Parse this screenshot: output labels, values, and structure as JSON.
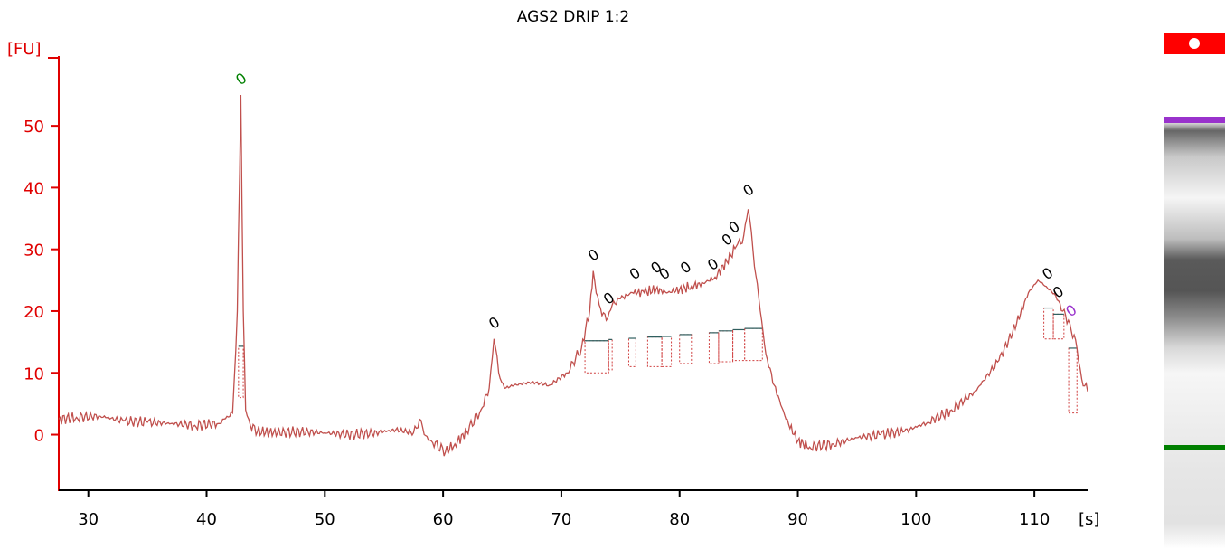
{
  "chart_data": {
    "type": "line",
    "title": "AGS2 DRIP 1:2",
    "ylabel": "[FU]",
    "xlabel": "[s]",
    "xlim": [
      27.5,
      114.5
    ],
    "ylim": [
      -9,
      61
    ],
    "x_ticks": [
      "30",
      "40",
      "50",
      "60",
      "70",
      "80",
      "90",
      "100",
      "110"
    ],
    "y_ticks": [
      "0",
      "10",
      "20",
      "30",
      "40",
      "50"
    ],
    "grid": false,
    "series": [
      {
        "color": "#c0504d",
        "x": [
          27.5,
          29,
          31,
          33,
          35,
          37,
          39,
          41,
          42.2,
          42.6,
          42.9,
          43.1,
          43.3,
          43.7,
          44.3,
          46,
          48,
          50,
          52,
          54,
          56,
          57.5,
          58.0,
          58.4,
          59,
          60.2,
          61,
          62,
          63.2,
          63.9,
          64.3,
          64.7,
          65.2,
          66,
          67.5,
          69,
          70.5,
          71.7,
          72.4,
          72.7,
          73.2,
          73.8,
          74.3,
          75,
          76,
          77,
          78,
          79,
          80,
          81,
          82,
          83,
          84,
          84.8,
          85.3,
          85.8,
          86.2,
          86.7,
          87.3,
          88,
          89,
          90,
          91,
          93,
          95,
          97,
          99,
          101,
          103,
          105,
          107,
          108.5,
          109.5,
          110.3,
          111,
          111.8,
          112.4,
          113.0,
          113.6,
          114.0,
          114.5
        ],
        "y": [
          2.5,
          2.8,
          3.0,
          2.2,
          2.0,
          1.8,
          1.5,
          1.8,
          3.5,
          20.0,
          55.0,
          20.0,
          4.0,
          1.5,
          0.5,
          0.3,
          0.5,
          0.3,
          0.0,
          0.2,
          0.8,
          0.3,
          2.5,
          0.0,
          -1.0,
          -2.8,
          -1.5,
          0.5,
          4.0,
          7.5,
          15.5,
          10.0,
          7.5,
          8.0,
          8.5,
          8.0,
          10.0,
          14.0,
          20.0,
          26.5,
          21.0,
          18.5,
          21.0,
          22.0,
          23.0,
          23.0,
          23.5,
          23.0,
          23.5,
          24.0,
          24.5,
          25.5,
          28.0,
          30.5,
          31.0,
          36.5,
          30.0,
          22.0,
          13.0,
          8.0,
          2.5,
          -1.0,
          -2.0,
          -1.5,
          -0.5,
          0.0,
          0.5,
          2.0,
          4.0,
          7.0,
          12.0,
          18.0,
          23.0,
          25.0,
          24.0,
          22.5,
          20.0,
          18.0,
          14.0,
          9.0,
          7.0
        ]
      }
    ],
    "peaks": [
      {
        "x": 42.9,
        "y": 55.0,
        "label": "0",
        "color": "#008000"
      },
      {
        "x": 64.3,
        "y": 15.5,
        "label": "0",
        "color": "#000000"
      },
      {
        "x": 72.7,
        "y": 26.5,
        "label": "0",
        "color": "#000000"
      },
      {
        "x": 74.0,
        "y": 19.5,
        "label": "0",
        "color": "#000000"
      },
      {
        "x": 76.2,
        "y": 23.5,
        "label": "0",
        "color": "#000000"
      },
      {
        "x": 78.0,
        "y": 24.5,
        "label": "0",
        "color": "#000000"
      },
      {
        "x": 78.7,
        "y": 23.5,
        "label": "0",
        "color": "#000000"
      },
      {
        "x": 80.5,
        "y": 24.5,
        "label": "0",
        "color": "#000000"
      },
      {
        "x": 82.8,
        "y": 25.0,
        "label": "0",
        "color": "#000000"
      },
      {
        "x": 84.0,
        "y": 29.0,
        "label": "0",
        "color": "#000000"
      },
      {
        "x": 84.6,
        "y": 31.0,
        "label": "0",
        "color": "#000000"
      },
      {
        "x": 85.8,
        "y": 37.0,
        "label": "0",
        "color": "#000000"
      },
      {
        "x": 111.1,
        "y": 23.5,
        "label": "0",
        "color": "#000000"
      },
      {
        "x": 112.0,
        "y": 20.5,
        "label": "0",
        "color": "#000000"
      },
      {
        "x": 113.1,
        "y": 17.5,
        "label": "0",
        "color": "#9932cc"
      }
    ],
    "integration_regions": [
      {
        "x0": 42.7,
        "x1": 43.1,
        "baseline": 14.3,
        "bottom": 6.0
      },
      {
        "x0": 72.0,
        "x1": 74.0,
        "baseline": 15.2,
        "bottom": 10.0
      },
      {
        "x0": 74.0,
        "x1": 74.3,
        "baseline": 15.4,
        "bottom": 10.5
      },
      {
        "x0": 75.7,
        "x1": 76.3,
        "baseline": 15.6,
        "bottom": 11.0
      },
      {
        "x0": 77.3,
        "x1": 78.5,
        "baseline": 15.8,
        "bottom": 11.0
      },
      {
        "x0": 78.5,
        "x1": 79.3,
        "baseline": 15.9,
        "bottom": 11.0
      },
      {
        "x0": 80.0,
        "x1": 81.0,
        "baseline": 16.2,
        "bottom": 11.5
      },
      {
        "x0": 82.5,
        "x1": 83.3,
        "baseline": 16.5,
        "bottom": 11.5
      },
      {
        "x0": 83.3,
        "x1": 84.5,
        "baseline": 16.8,
        "bottom": 11.8
      },
      {
        "x0": 84.5,
        "x1": 85.5,
        "baseline": 17.0,
        "bottom": 12.0
      },
      {
        "x0": 85.5,
        "x1": 87.0,
        "baseline": 17.2,
        "bottom": 12.0
      },
      {
        "x0": 110.8,
        "x1": 111.6,
        "baseline": 20.5,
        "bottom": 15.5
      },
      {
        "x0": 111.6,
        "x1": 112.5,
        "baseline": 19.5,
        "bottom": 15.5
      },
      {
        "x0": 112.9,
        "x1": 113.6,
        "baseline": 14.0,
        "bottom": 3.5
      }
    ]
  },
  "gel_lane": {
    "top_marker_color": "#ff0000",
    "upper_marker_color": "#9932cc",
    "lower_marker_color": "#008000"
  }
}
